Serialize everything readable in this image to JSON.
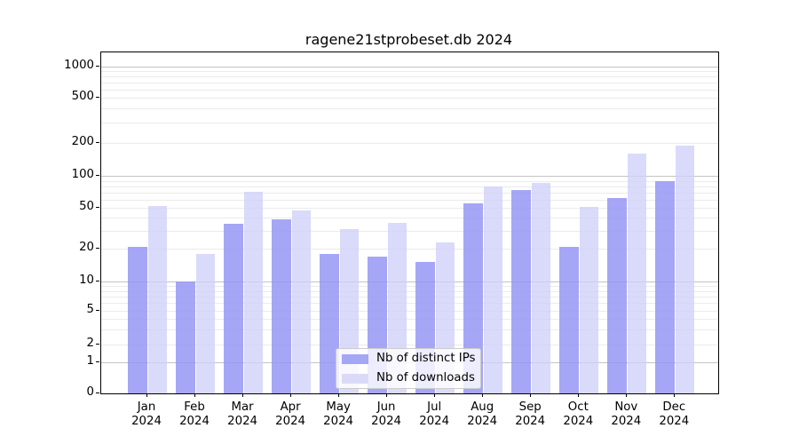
{
  "title": "ragene21stprobeset.db 2024",
  "chart_data": {
    "type": "bar",
    "title": "ragene21stprobeset.db 2024",
    "categories": [
      "Jan",
      "Feb",
      "Mar",
      "Apr",
      "May",
      "Jun",
      "Jul",
      "Aug",
      "Sep",
      "Oct",
      "Nov",
      "Dec"
    ],
    "year": "2024",
    "series": [
      {
        "name": "Nb of distinct IPs",
        "color": "#a6a6f6",
        "fill": "rgba(146,146,244,0.82)",
        "values": [
          21,
          10,
          35,
          39,
          18,
          17,
          15,
          55,
          74,
          21,
          62,
          90
        ]
      },
      {
        "name": "Nb of downloads",
        "color": "#dadaf8",
        "fill": "rgba(208,208,248,0.78)",
        "values": [
          52,
          18,
          71,
          47,
          31,
          36,
          23,
          79,
          86,
          51,
          160,
          190
        ]
      }
    ],
    "x_axis": {
      "tick_labels": [
        "Jan 2024",
        "Feb 2024",
        "Mar 2024",
        "Apr 2024",
        "May 2024",
        "Jun 2024",
        "Jul 2024",
        "Aug 2024",
        "Sep 2024",
        "Oct 2024",
        "Nov 2024",
        "Dec 2024"
      ]
    },
    "y_axis": {
      "scale": "symlog",
      "range": [
        0,
        1350
      ],
      "ticks": [
        0,
        1,
        2,
        5,
        10,
        20,
        50,
        100,
        200,
        500,
        1000
      ],
      "major_gridlines": [
        1,
        10,
        100,
        1000
      ],
      "minor_gridlines": [
        2,
        3,
        4,
        5,
        6,
        7,
        8,
        9,
        20,
        30,
        40,
        50,
        60,
        70,
        80,
        90,
        200,
        300,
        400,
        500,
        600,
        700,
        800,
        900
      ],
      "tick_position_fractions": [
        [
          0,
          1.0
        ],
        [
          1,
          0.9096
        ],
        [
          2,
          0.856
        ],
        [
          5,
          0.7578
        ],
        [
          10,
          0.6719
        ],
        [
          20,
          0.5755
        ],
        [
          50,
          0.4557
        ],
        [
          100,
          0.362
        ],
        [
          200,
          0.2656
        ],
        [
          500,
          0.1328
        ],
        [
          1000,
          0.0417
        ]
      ]
    },
    "legend": {
      "position": "lower center",
      "entries": [
        "Nb of distinct IPs",
        "Nb of downloads"
      ]
    },
    "grid": true
  },
  "colors": {
    "background": "#ffffff",
    "spine": "#000000",
    "major_grid": "#c4c4c4",
    "minor_grid": "#ebebeb",
    "legend_border": "#cccccc",
    "text": "#000000"
  }
}
